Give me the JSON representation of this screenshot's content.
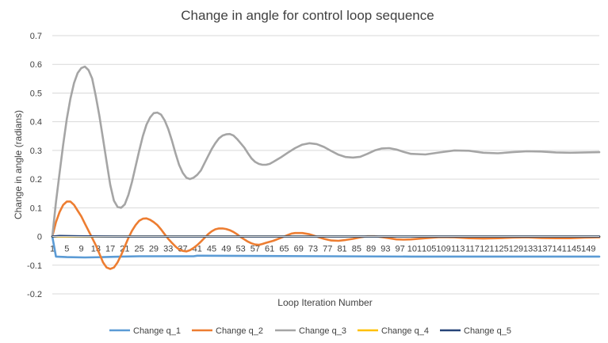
{
  "chart_data": {
    "type": "line",
    "title": "Change in angle for control loop sequence",
    "xlabel": "Loop Iteration Number",
    "ylabel": "Change in angle (radians)",
    "ylim": [
      -0.2,
      0.7
    ],
    "yticks": [
      "0.7",
      "0.6",
      "0.5",
      "0.4",
      "0.3",
      "0.2",
      "0.1",
      "0",
      "-0.1",
      "-0.2"
    ],
    "xlim": [
      1,
      152
    ],
    "xticks": [
      "1",
      "5",
      "9",
      "13",
      "17",
      "21",
      "25",
      "29",
      "33",
      "37",
      "41",
      "45",
      "49",
      "53",
      "57",
      "61",
      "65",
      "69",
      "73",
      "77",
      "81",
      "85",
      "89",
      "93",
      "97",
      "101",
      "105",
      "109",
      "113",
      "117",
      "121",
      "125",
      "129",
      "133",
      "137",
      "141",
      "145",
      "149"
    ],
    "grid": true,
    "legend_position": "bottom",
    "series": [
      {
        "name": "Change q_1",
        "color": "#5B9BD5",
        "points": [
          [
            1,
            0
          ],
          [
            2,
            -0.07
          ],
          [
            5,
            -0.072
          ],
          [
            10,
            -0.073
          ],
          [
            15,
            -0.072
          ],
          [
            20,
            -0.07
          ],
          [
            25,
            -0.069
          ],
          [
            40,
            -0.069
          ],
          [
            41,
            -0.067
          ],
          [
            60,
            -0.068
          ],
          [
            100,
            -0.07
          ],
          [
            152,
            -0.07
          ]
        ]
      },
      {
        "name": "Change q_2",
        "color": "#ED7D31",
        "points": [
          [
            1,
            0
          ],
          [
            2,
            0.05
          ],
          [
            3,
            0.085
          ],
          [
            4,
            0.11
          ],
          [
            5,
            0.122
          ],
          [
            6,
            0.122
          ],
          [
            7,
            0.11
          ],
          [
            8,
            0.09
          ],
          [
            9,
            0.07
          ],
          [
            10,
            0.045
          ],
          [
            11,
            0.02
          ],
          [
            12,
            -0.005
          ],
          [
            13,
            -0.03
          ],
          [
            14,
            -0.06
          ],
          [
            15,
            -0.09
          ],
          [
            16,
            -0.108
          ],
          [
            17,
            -0.113
          ],
          [
            18,
            -0.108
          ],
          [
            19,
            -0.09
          ],
          [
            20,
            -0.065
          ],
          [
            21,
            -0.035
          ],
          [
            22,
            -0.005
          ],
          [
            23,
            0.02
          ],
          [
            24,
            0.04
          ],
          [
            25,
            0.055
          ],
          [
            26,
            0.062
          ],
          [
            27,
            0.063
          ],
          [
            28,
            0.058
          ],
          [
            29,
            0.05
          ],
          [
            30,
            0.04
          ],
          [
            31,
            0.025
          ],
          [
            32,
            0.008
          ],
          [
            33,
            -0.008
          ],
          [
            34,
            -0.022
          ],
          [
            35,
            -0.035
          ],
          [
            36,
            -0.045
          ],
          [
            37,
            -0.05
          ],
          [
            38,
            -0.052
          ],
          [
            39,
            -0.048
          ],
          [
            40,
            -0.04
          ],
          [
            41,
            -0.03
          ],
          [
            42,
            -0.018
          ],
          [
            43,
            -0.005
          ],
          [
            44,
            0.008
          ],
          [
            45,
            0.018
          ],
          [
            46,
            0.025
          ],
          [
            47,
            0.028
          ],
          [
            48,
            0.028
          ],
          [
            49,
            0.026
          ],
          [
            50,
            0.022
          ],
          [
            51,
            0.016
          ],
          [
            52,
            0.008
          ],
          [
            53,
            -0.002
          ],
          [
            54,
            -0.01
          ],
          [
            55,
            -0.018
          ],
          [
            56,
            -0.024
          ],
          [
            57,
            -0.028
          ],
          [
            58,
            -0.029
          ],
          [
            59,
            -0.026
          ],
          [
            60,
            -0.022
          ],
          [
            62,
            -0.015
          ],
          [
            64,
            -0.005
          ],
          [
            66,
            0.005
          ],
          [
            67,
            0.01
          ],
          [
            68,
            0.012
          ],
          [
            70,
            0.012
          ],
          [
            72,
            0.008
          ],
          [
            74,
            0.0
          ],
          [
            76,
            -0.008
          ],
          [
            78,
            -0.014
          ],
          [
            80,
            -0.015
          ],
          [
            82,
            -0.012
          ],
          [
            84,
            -0.008
          ],
          [
            86,
            -0.003
          ],
          [
            88,
            0.001
          ],
          [
            90,
            0.001
          ],
          [
            92,
            -0.002
          ],
          [
            94,
            -0.006
          ],
          [
            96,
            -0.01
          ],
          [
            98,
            -0.011
          ],
          [
            100,
            -0.01
          ],
          [
            104,
            -0.006
          ],
          [
            108,
            -0.002
          ],
          [
            112,
            -0.003
          ],
          [
            116,
            -0.006
          ],
          [
            120,
            -0.007
          ],
          [
            124,
            -0.006
          ],
          [
            128,
            -0.004
          ],
          [
            132,
            -0.003
          ],
          [
            136,
            -0.005
          ],
          [
            140,
            -0.006
          ],
          [
            144,
            -0.006
          ],
          [
            148,
            -0.004
          ],
          [
            152,
            -0.003
          ]
        ]
      },
      {
        "name": "Change q_3",
        "color": "#A5A5A5",
        "points": [
          [
            1,
            0
          ],
          [
            2,
            0.12
          ],
          [
            3,
            0.22
          ],
          [
            4,
            0.32
          ],
          [
            5,
            0.41
          ],
          [
            6,
            0.48
          ],
          [
            7,
            0.535
          ],
          [
            8,
            0.57
          ],
          [
            9,
            0.587
          ],
          [
            10,
            0.592
          ],
          [
            11,
            0.58
          ],
          [
            12,
            0.55
          ],
          [
            13,
            0.49
          ],
          [
            14,
            0.42
          ],
          [
            15,
            0.34
          ],
          [
            16,
            0.26
          ],
          [
            17,
            0.18
          ],
          [
            18,
            0.125
          ],
          [
            19,
            0.103
          ],
          [
            20,
            0.1
          ],
          [
            21,
            0.112
          ],
          [
            22,
            0.145
          ],
          [
            23,
            0.19
          ],
          [
            24,
            0.245
          ],
          [
            25,
            0.3
          ],
          [
            26,
            0.35
          ],
          [
            27,
            0.39
          ],
          [
            28,
            0.415
          ],
          [
            29,
            0.43
          ],
          [
            30,
            0.432
          ],
          [
            31,
            0.425
          ],
          [
            32,
            0.405
          ],
          [
            33,
            0.375
          ],
          [
            34,
            0.335
          ],
          [
            35,
            0.29
          ],
          [
            36,
            0.25
          ],
          [
            37,
            0.222
          ],
          [
            38,
            0.205
          ],
          [
            39,
            0.2
          ],
          [
            40,
            0.205
          ],
          [
            41,
            0.215
          ],
          [
            42,
            0.23
          ],
          [
            43,
            0.255
          ],
          [
            44,
            0.28
          ],
          [
            45,
            0.305
          ],
          [
            46,
            0.325
          ],
          [
            47,
            0.342
          ],
          [
            48,
            0.352
          ],
          [
            49,
            0.356
          ],
          [
            50,
            0.357
          ],
          [
            51,
            0.352
          ],
          [
            52,
            0.34
          ],
          [
            53,
            0.325
          ],
          [
            54,
            0.31
          ],
          [
            55,
            0.29
          ],
          [
            56,
            0.272
          ],
          [
            57,
            0.26
          ],
          [
            58,
            0.253
          ],
          [
            59,
            0.25
          ],
          [
            60,
            0.25
          ],
          [
            61,
            0.253
          ],
          [
            62,
            0.26
          ],
          [
            64,
            0.275
          ],
          [
            66,
            0.292
          ],
          [
            68,
            0.308
          ],
          [
            70,
            0.32
          ],
          [
            72,
            0.325
          ],
          [
            74,
            0.322
          ],
          [
            76,
            0.312
          ],
          [
            78,
            0.298
          ],
          [
            80,
            0.285
          ],
          [
            82,
            0.277
          ],
          [
            84,
            0.275
          ],
          [
            86,
            0.278
          ],
          [
            88,
            0.288
          ],
          [
            90,
            0.3
          ],
          [
            92,
            0.307
          ],
          [
            94,
            0.308
          ],
          [
            96,
            0.303
          ],
          [
            98,
            0.295
          ],
          [
            100,
            0.288
          ],
          [
            104,
            0.286
          ],
          [
            108,
            0.293
          ],
          [
            112,
            0.3
          ],
          [
            116,
            0.299
          ],
          [
            120,
            0.292
          ],
          [
            124,
            0.29
          ],
          [
            128,
            0.294
          ],
          [
            132,
            0.297
          ],
          [
            136,
            0.296
          ],
          [
            140,
            0.293
          ],
          [
            144,
            0.292
          ],
          [
            148,
            0.293
          ],
          [
            152,
            0.294
          ]
        ]
      },
      {
        "name": "Change q_4",
        "color": "#FFC000",
        "points": [
          [
            1,
            0
          ],
          [
            152,
            0
          ]
        ]
      },
      {
        "name": "Change q_5",
        "color": "#264478",
        "points": [
          [
            1,
            0
          ],
          [
            3,
            0.002
          ],
          [
            8,
            0.001
          ],
          [
            20,
            0
          ],
          [
            152,
            0
          ]
        ]
      }
    ]
  }
}
